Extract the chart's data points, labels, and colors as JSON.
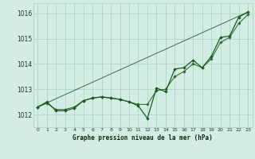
{
  "title": "Graphe pression niveau de la mer (hPa)",
  "xlim": [
    -0.5,
    23.5
  ],
  "ylim": [
    1011.5,
    1016.4
  ],
  "yticks": [
    1012,
    1013,
    1014,
    1015,
    1016
  ],
  "xtick_labels": [
    "0",
    "1",
    "2",
    "3",
    "4",
    "5",
    "6",
    "7",
    "8",
    "9",
    "10",
    "11",
    "12",
    "13",
    "14",
    "15",
    "16",
    "17",
    "18",
    "19",
    "20",
    "21",
    "22",
    "23"
  ],
  "xticks": [
    0,
    1,
    2,
    3,
    4,
    5,
    6,
    7,
    8,
    9,
    10,
    11,
    12,
    13,
    14,
    15,
    16,
    17,
    18,
    19,
    20,
    21,
    22,
    23
  ],
  "bg_color": "#d4ede4",
  "grid_color": "#aed4c6",
  "line_color": "#1a5c20",
  "marker_color": "#1a5c20",
  "series_detailed": {
    "x": [
      0,
      1,
      2,
      3,
      4,
      5,
      6,
      7,
      8,
      9,
      10,
      11,
      12,
      13,
      14,
      15,
      16,
      17,
      18,
      19,
      20,
      21,
      22,
      23
    ],
    "y": [
      1012.3,
      1012.5,
      1012.15,
      1012.15,
      1012.25,
      1012.55,
      1012.65,
      1012.7,
      1012.65,
      1012.6,
      1012.5,
      1012.35,
      1011.85,
      1013.05,
      1012.9,
      1013.8,
      1013.85,
      1014.15,
      1013.85,
      1014.3,
      1015.05,
      1015.1,
      1015.85,
      1016.05
    ]
  },
  "series_smooth": {
    "x": [
      0,
      1,
      2,
      3,
      4,
      5,
      6,
      7,
      8,
      9,
      10,
      11,
      12,
      13,
      14,
      15,
      16,
      17,
      18,
      19,
      20,
      21,
      22,
      23
    ],
    "y": [
      1012.3,
      1012.45,
      1012.2,
      1012.2,
      1012.3,
      1012.55,
      1012.65,
      1012.7,
      1012.65,
      1012.6,
      1012.5,
      1012.4,
      1012.4,
      1012.95,
      1013.0,
      1013.5,
      1013.7,
      1014.0,
      1013.85,
      1014.2,
      1014.85,
      1015.05,
      1015.6,
      1015.95
    ]
  },
  "series_trend": {
    "x": [
      0,
      23
    ],
    "y": [
      1012.3,
      1016.05
    ]
  }
}
